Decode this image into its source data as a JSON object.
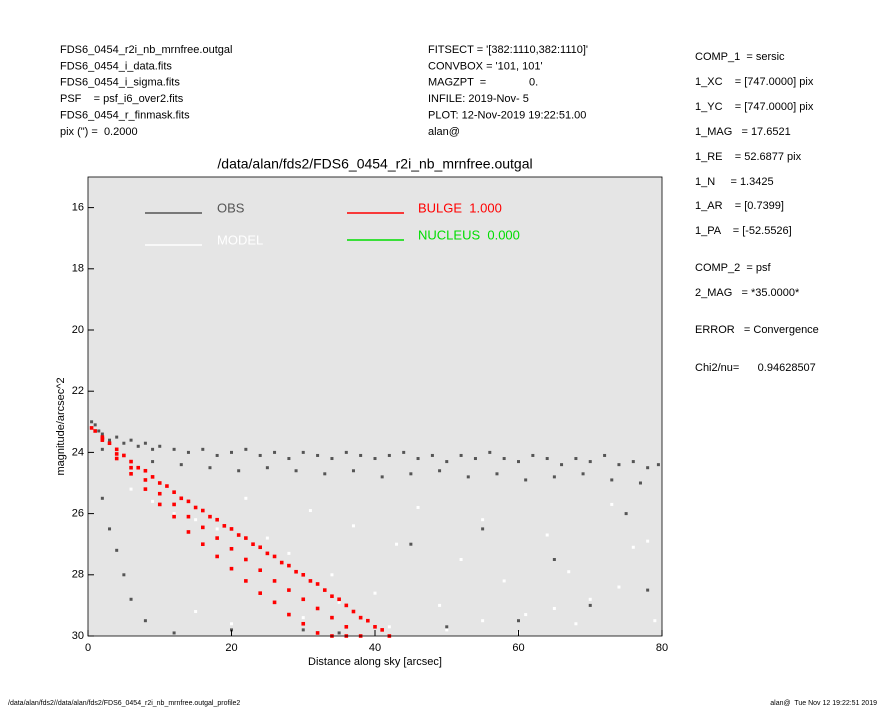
{
  "header": {
    "left": [
      "FDS6_0454_r2i_nb_mrnfree.outgal",
      "FDS6_0454_i_data.fits",
      "FDS6_0454_i_sigma.fits",
      "PSF    = psf_i6_over2.fits",
      "FDS6_0454_r_finmask.fits",
      "pix (\") =  0.2000"
    ],
    "middle": [
      "FITSECT = '[382:1110,382:1110]'",
      "CONVBOX = '101, 101'",
      "MAGZPT  =              0.",
      "INFILE: 2019-Nov- 5",
      "PLOT: 12-Nov-2019 19:22:51.00",
      "alan@"
    ]
  },
  "fit_results": [
    "COMP_1  = sersic",
    "1_XC    = [747.0000] pix",
    "1_YC    = [747.0000] pix",
    "1_MAG   = 17.6521",
    "1_RE    = 52.6877 pix",
    "1_N     = 1.3425",
    "1_AR    = [0.7399]",
    "1_PA    = [-52.5526]",
    "COMP_2  = psf",
    "2_MAG   = *35.0000*",
    "ERROR   = Convergence",
    "Chi2/nu=      0.94628507"
  ],
  "footer": {
    "left": "/data/alan/fds2//data/alan/fds2/FDS6_0454_r2i_nb_mrnfree.outgal_profile2",
    "right": "alan@  Tue Nov 12 19:22:51 2019"
  },
  "chart_data": {
    "type": "scatter",
    "title": "/data/alan/fds2/FDS6_0454_r2i_nb_mrnfree.outgal",
    "x_label": "Distance along sky [arcsec]",
    "y_label": "magnitude/arcsec^2",
    "xlim": [
      0,
      80
    ],
    "xticks": [
      0,
      20,
      40,
      60,
      80
    ],
    "ylim": [
      30,
      15
    ],
    "yticks": [
      16,
      18,
      20,
      22,
      24,
      26,
      28,
      30
    ],
    "background": "#e5e5e5",
    "series": [
      {
        "name": "OBS",
        "color": "#555555",
        "x": [
          0.5,
          1,
          1.5,
          2,
          3,
          4,
          5,
          6,
          7,
          8,
          9,
          10,
          12,
          14,
          16,
          18,
          20,
          22,
          24,
          26,
          28,
          30,
          32,
          34,
          36,
          38,
          40,
          42,
          44,
          46,
          48,
          50,
          52,
          54,
          56,
          58,
          60,
          62,
          64,
          66,
          68,
          70,
          72,
          74,
          76,
          78,
          79.5,
          2,
          5,
          9,
          13,
          17,
          21,
          25,
          29,
          33,
          37,
          41,
          45,
          49,
          53,
          57,
          61,
          65,
          69,
          73,
          77,
          2,
          3,
          4,
          5,
          6,
          8,
          12,
          20,
          30,
          45,
          55,
          65,
          75,
          70,
          78,
          60,
          35,
          50
        ],
        "y": [
          23.0,
          23.1,
          23.3,
          23.4,
          23.6,
          23.5,
          23.7,
          23.6,
          23.8,
          23.7,
          23.9,
          23.8,
          23.9,
          24.0,
          23.9,
          24.1,
          24.0,
          23.9,
          24.1,
          24.0,
          24.2,
          24.0,
          24.1,
          24.2,
          24.0,
          24.1,
          24.2,
          24.1,
          24.0,
          24.2,
          24.1,
          24.3,
          24.1,
          24.2,
          24.0,
          24.2,
          24.3,
          24.1,
          24.2,
          24.4,
          24.2,
          24.3,
          24.1,
          24.4,
          24.3,
          24.5,
          24.4,
          23.9,
          24.1,
          24.3,
          24.4,
          24.5,
          24.6,
          24.5,
          24.6,
          24.7,
          24.6,
          24.8,
          24.7,
          24.6,
          24.8,
          24.7,
          24.9,
          24.8,
          24.7,
          24.9,
          25.0,
          25.5,
          26.5,
          27.2,
          28.0,
          28.8,
          29.5,
          29.9,
          29.8,
          29.8,
          27.0,
          26.5,
          27.5,
          26.0,
          29.0,
          28.5,
          29.5,
          29.9,
          29.7
        ]
      },
      {
        "name": "MODEL",
        "color": "#ffffff",
        "x": [
          6,
          9,
          12,
          15,
          18,
          22,
          25,
          28,
          31,
          34,
          37,
          40,
          43,
          46,
          49,
          52,
          55,
          58,
          61,
          64,
          67,
          70,
          73,
          76,
          79,
          20,
          30,
          42,
          50,
          60,
          68,
          74,
          78,
          15,
          35,
          55,
          65
        ],
        "y": [
          25.2,
          25.6,
          26.0,
          26.2,
          26.5,
          25.5,
          26.8,
          27.3,
          25.9,
          28.0,
          26.4,
          28.6,
          27.0,
          25.8,
          29.0,
          27.5,
          26.2,
          28.2,
          29.3,
          26.7,
          27.9,
          28.8,
          25.7,
          27.1,
          29.5,
          29.6,
          29.4,
          29.7,
          29.8,
          29.9,
          29.6,
          28.4,
          26.9,
          29.2,
          28.9,
          29.5,
          29.1
        ]
      },
      {
        "name": "BULGE  1.000",
        "color": "#ff0000",
        "x": [
          0.5,
          1,
          2,
          3,
          4,
          5,
          6,
          7,
          8,
          9,
          10,
          11,
          12,
          13,
          14,
          15,
          16,
          17,
          18,
          19,
          20,
          21,
          22,
          23,
          24,
          25,
          26,
          27,
          28,
          29,
          30,
          31,
          32,
          33,
          34,
          35,
          36,
          37,
          38,
          39,
          40,
          41,
          42,
          2,
          4,
          6,
          8,
          10,
          12,
          14,
          16,
          18,
          20,
          22,
          24,
          26,
          28,
          30,
          32,
          34,
          36,
          38,
          2,
          4,
          6,
          8,
          10,
          12,
          14,
          16,
          18,
          20,
          22,
          24,
          26,
          28,
          30,
          32,
          34,
          36
        ],
        "y": [
          23.2,
          23.3,
          23.5,
          23.7,
          23.9,
          24.1,
          24.3,
          24.5,
          24.6,
          24.8,
          25.0,
          25.1,
          25.3,
          25.5,
          25.6,
          25.8,
          25.9,
          26.1,
          26.2,
          26.4,
          26.5,
          26.7,
          26.8,
          27.0,
          27.1,
          27.3,
          27.4,
          27.6,
          27.7,
          27.9,
          28.0,
          28.2,
          28.3,
          28.5,
          28.7,
          28.8,
          29.0,
          29.2,
          29.4,
          29.5,
          29.7,
          29.8,
          30.0,
          23.6,
          24.2,
          24.7,
          25.2,
          25.7,
          26.1,
          26.6,
          27.0,
          27.4,
          27.8,
          28.2,
          28.6,
          28.9,
          29.3,
          29.6,
          29.9,
          30.0,
          30.0,
          30.0,
          23.55,
          24.05,
          24.5,
          24.9,
          25.35,
          25.7,
          26.1,
          26.45,
          26.8,
          27.15,
          27.5,
          27.85,
          28.2,
          28.5,
          28.8,
          29.1,
          29.4,
          29.7
        ]
      },
      {
        "name": "NUCLEUS  0.000",
        "color": "#00dd00",
        "x": [],
        "y": []
      }
    ]
  }
}
